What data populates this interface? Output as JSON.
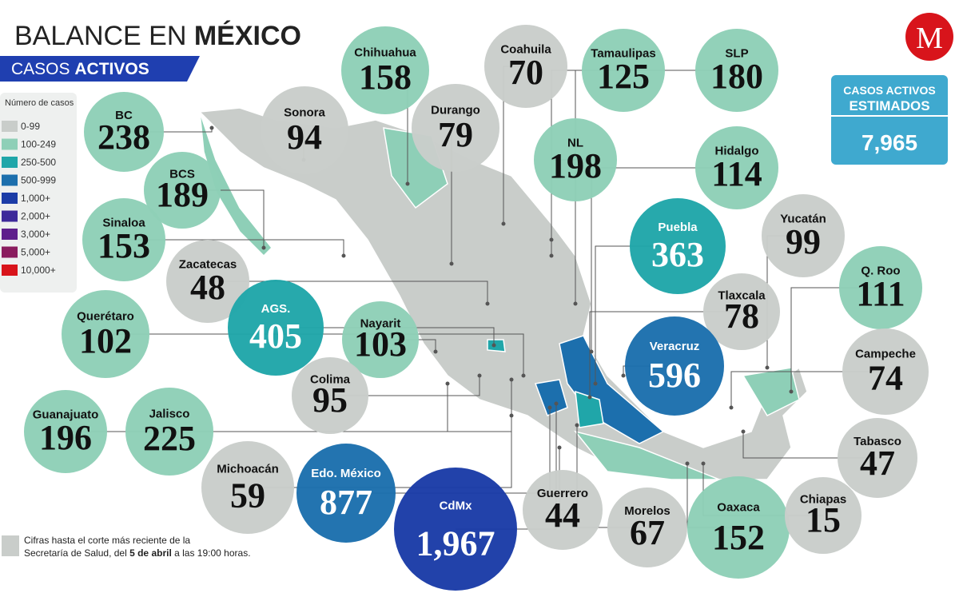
{
  "header": {
    "title_light": "BALANCE EN",
    "title_bold": "MÉXICO",
    "subtitle_light": "CASOS",
    "subtitle_bold": "ACTIVOS"
  },
  "legend": {
    "title": "Número de casos",
    "items": [
      {
        "label": "0-99",
        "color": "#c9cdca"
      },
      {
        "label": "100-249",
        "color": "#8ecfb7"
      },
      {
        "label": "250-500",
        "color": "#20a6a9"
      },
      {
        "label": "500-999",
        "color": "#1c6fad"
      },
      {
        "label": "1,000+",
        "color": "#1b3ca7"
      },
      {
        "label": "2,000+",
        "color": "#3d2a9a"
      },
      {
        "label": "3,000+",
        "color": "#5e1f8c"
      },
      {
        "label": "5,000+",
        "color": "#8a1c5e"
      },
      {
        "label": "10,000+",
        "color": "#d8141b"
      }
    ]
  },
  "total": {
    "label_line1": "CASOS ACTIVOS",
    "label_line2": "ESTIMADOS",
    "value": "7,965"
  },
  "logo": "M",
  "states": [
    {
      "name": "BC",
      "value": "238",
      "color": "#8ecfb7"
    },
    {
      "name": "Sonora",
      "value": "94",
      "color": "#c9cdca"
    },
    {
      "name": "Chihuahua",
      "value": "158",
      "color": "#8ecfb7"
    },
    {
      "name": "Coahuila",
      "value": "70",
      "color": "#c9cdca"
    },
    {
      "name": "Durango",
      "value": "79",
      "color": "#c9cdca"
    },
    {
      "name": "Tamaulipas",
      "value": "125",
      "color": "#8ecfb7"
    },
    {
      "name": "SLP",
      "value": "180",
      "color": "#8ecfb7"
    },
    {
      "name": "NL",
      "value": "198",
      "color": "#8ecfb7"
    },
    {
      "name": "Hidalgo",
      "value": "114",
      "color": "#8ecfb7"
    },
    {
      "name": "BCS",
      "value": "189",
      "color": "#8ecfb7"
    },
    {
      "name": "Sinaloa",
      "value": "153",
      "color": "#8ecfb7"
    },
    {
      "name": "Zacatecas",
      "value": "48",
      "color": "#c9cdca"
    },
    {
      "name": "Puebla",
      "value": "363",
      "color": "#20a6a9"
    },
    {
      "name": "Yucatán",
      "value": "99",
      "color": "#c9cdca"
    },
    {
      "name": "Q. Roo",
      "value": "111",
      "color": "#8ecfb7"
    },
    {
      "name": "AGS.",
      "value": "405",
      "color": "#20a6a9"
    },
    {
      "name": "Nayarit",
      "value": "103",
      "color": "#8ecfb7"
    },
    {
      "name": "Tlaxcala",
      "value": "78",
      "color": "#c9cdca"
    },
    {
      "name": "Querétaro",
      "value": "102",
      "color": "#8ecfb7"
    },
    {
      "name": "Veracruz",
      "value": "596",
      "color": "#1c6fad"
    },
    {
      "name": "Campeche",
      "value": "74",
      "color": "#c9cdca"
    },
    {
      "name": "Colima",
      "value": "95",
      "color": "#c9cdca"
    },
    {
      "name": "Guanajuato",
      "value": "196",
      "color": "#8ecfb7"
    },
    {
      "name": "Jalisco",
      "value": "225",
      "color": "#8ecfb7"
    },
    {
      "name": "Tabasco",
      "value": "47",
      "color": "#c9cdca"
    },
    {
      "name": "Michoacán",
      "value": "59",
      "color": "#c9cdca"
    },
    {
      "name": "Edo. México",
      "value": "877",
      "color": "#1c6fad"
    },
    {
      "name": "CdMx",
      "value": "1,967",
      "color": "#1b3ca7"
    },
    {
      "name": "Guerrero",
      "value": "44",
      "color": "#c9cdca"
    },
    {
      "name": "Morelos",
      "value": "67",
      "color": "#c9cdca"
    },
    {
      "name": "Oaxaca",
      "value": "152",
      "color": "#8ecfb7"
    },
    {
      "name": "Chiapas",
      "value": "15",
      "color": "#c9cdca"
    }
  ],
  "footnote": {
    "text_before": "Cifras hasta el corte más reciente de la",
    "text_line2": "Secretaría de Salud, del",
    "date": "5 de abril",
    "text_after": "a las 19:00 horas."
  }
}
